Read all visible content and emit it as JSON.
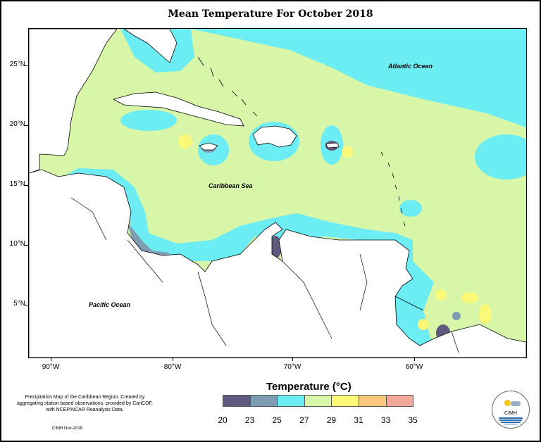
{
  "map": {
    "title": "Mean Temperature For October 2018",
    "latitude_labels": [
      "25°N",
      "20°N",
      "15°N",
      "10°N",
      "5°N"
    ],
    "longitude_labels": [
      "90°W",
      "80°W",
      "70°W",
      "60°W"
    ],
    "region_labels": {
      "atlantic": "Atlantic Ocean",
      "caribbean": "Caribbean Sea",
      "pacific": "Pacific Ocean"
    }
  },
  "legend": {
    "title": "Temperature (°C)",
    "colors": [
      "#5e5a7e",
      "#7f9db2",
      "#6cecf3",
      "#d7f6a8",
      "#fbf977",
      "#f9c77d",
      "#f4a89a"
    ],
    "tick_values": [
      "20",
      "23",
      "25",
      "27",
      "29",
      "31",
      "33",
      "35"
    ]
  },
  "footer": {
    "note": "Precipitation Map of the Caribbean Region. Created by aggregating station based observations, provided by CariCOF, with NCEP/NCAR Reanalysis Data.",
    "credit": "CIMH Nov-2018",
    "logo_text": "CIMH"
  },
  "palette": {
    "cyan": "#6cecf3",
    "green": "#d7f6a8",
    "yellow": "#fbf977",
    "orange": "#f9c77d",
    "slate": "#5e5a7e",
    "steel": "#7f9db2",
    "land": "#ffffff"
  }
}
